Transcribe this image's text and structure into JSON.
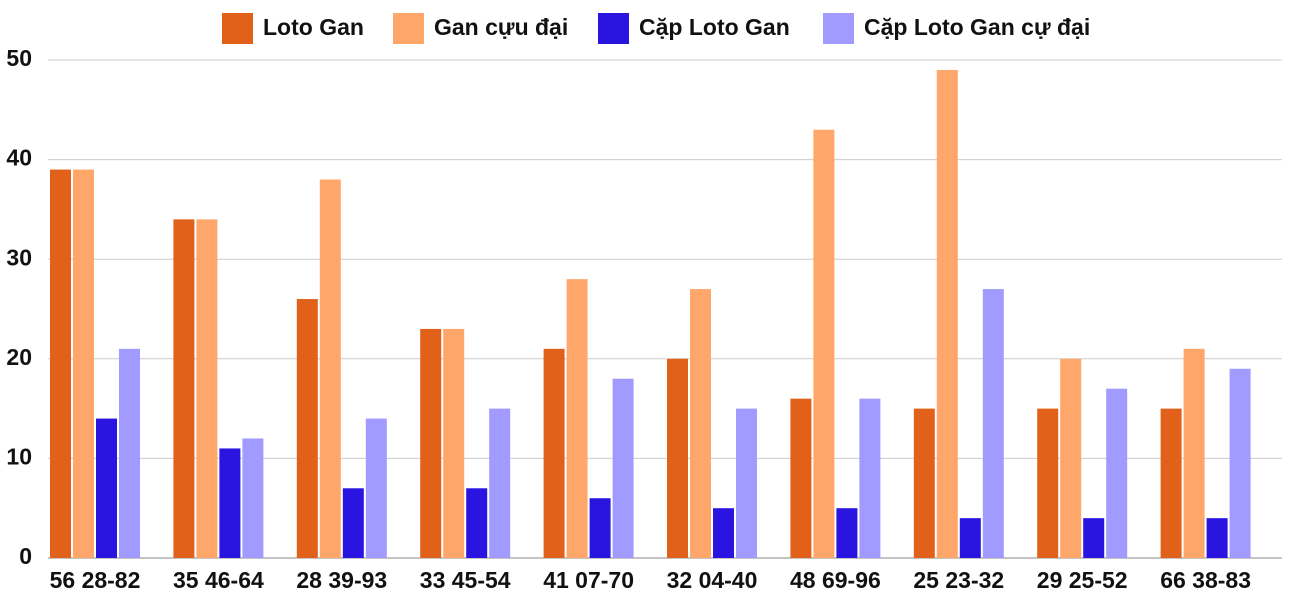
{
  "chart_data": {
    "type": "bar",
    "categories": [
      "56 28-82",
      "35 46-64",
      "28 39-93",
      "33 45-54",
      "41 07-70",
      "32 04-40",
      "48 69-96",
      "25 23-32",
      "29 25-52",
      "66 38-83"
    ],
    "series": [
      {
        "name": "Loto Gan",
        "color": "#e2611a",
        "values": [
          39,
          34,
          26,
          23,
          21,
          20,
          16,
          15,
          15,
          15
        ]
      },
      {
        "name": "Gan cựu đại",
        "color": "#ffa66a",
        "values": [
          39,
          34,
          38,
          23,
          28,
          27,
          43,
          49,
          20,
          21
        ]
      },
      {
        "name": "Cặp Loto Gan",
        "color": "#2a14e0",
        "values": [
          14,
          11,
          7,
          7,
          6,
          5,
          5,
          4,
          4,
          4
        ]
      },
      {
        "name": "Cặp Loto Gan cự đại",
        "color": "#a29bff",
        "values": [
          21,
          12,
          14,
          15,
          18,
          15,
          16,
          27,
          17,
          19
        ]
      }
    ],
    "ylim": [
      0,
      50
    ],
    "yticks": [
      0,
      10,
      20,
      30,
      40,
      50
    ],
    "grid": true,
    "legend": "top"
  }
}
